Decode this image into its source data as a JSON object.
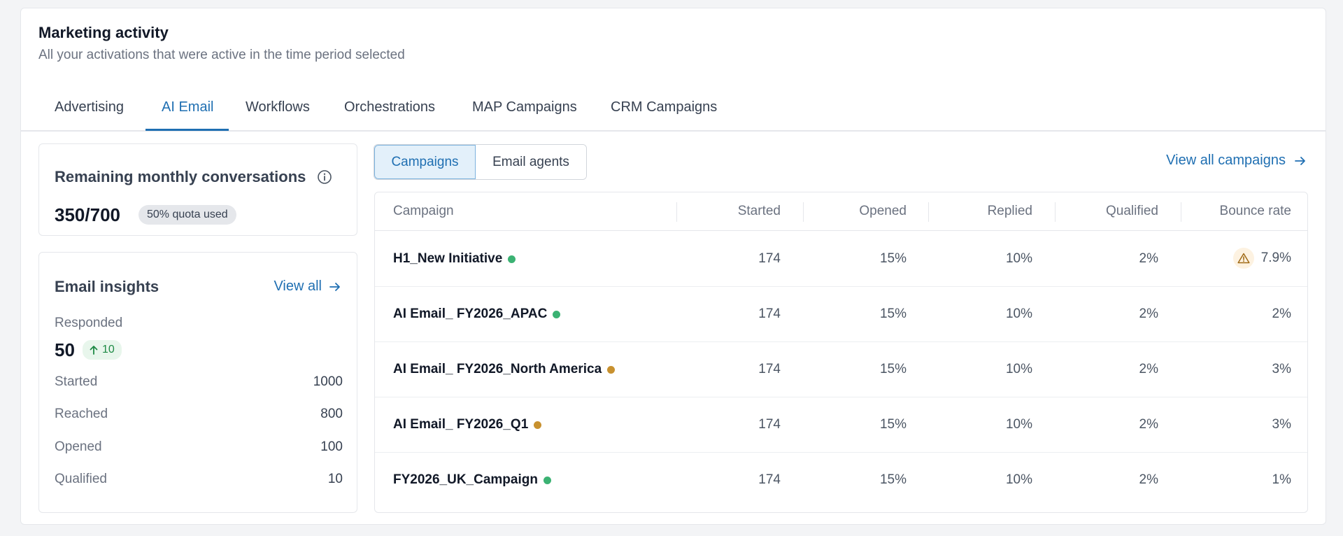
{
  "header": {
    "title": "Marketing activity",
    "subtitle": "All your activations that were active in the time period selected"
  },
  "tabs": [
    {
      "label": "Advertising"
    },
    {
      "label": "AI Email"
    },
    {
      "label": "Workflows"
    },
    {
      "label": "Orchestrations"
    },
    {
      "label": "MAP Campaigns"
    },
    {
      "label": "CRM Campaigns"
    }
  ],
  "active_tab": "AI Email",
  "quota": {
    "title": "Remaining monthly conversations",
    "value": "350/700",
    "badge": "50% quota used"
  },
  "insights": {
    "title": "Email insights",
    "view_all": "View all",
    "responded_label": "Responded",
    "responded_value": "50",
    "responded_delta": "10",
    "metrics": [
      {
        "label": "Started",
        "value": "1000"
      },
      {
        "label": "Reached",
        "value": "800"
      },
      {
        "label": "Opened",
        "value": "100"
      },
      {
        "label": "Qualified",
        "value": "10"
      }
    ]
  },
  "segmented": {
    "campaigns": "Campaigns",
    "email_agents": "Email agents"
  },
  "view_all_campaigns": "View all campaigns",
  "table": {
    "headers": [
      "Campaign",
      "Started",
      "Opened",
      "Replied",
      "Qualified",
      "Bounce rate"
    ],
    "rows": [
      {
        "name": "H1_New Initiative",
        "status": "green",
        "started": "174",
        "opened": "15%",
        "replied": "10%",
        "qualified": "2%",
        "bounce": "7.9%",
        "warning": true
      },
      {
        "name": "AI Email_ FY2026_APAC",
        "status": "green",
        "started": "174",
        "opened": "15%",
        "replied": "10%",
        "qualified": "2%",
        "bounce": "2%",
        "warning": false
      },
      {
        "name": "AI Email_ FY2026_North America",
        "status": "orange",
        "started": "174",
        "opened": "15%",
        "replied": "10%",
        "qualified": "2%",
        "bounce": "3%",
        "warning": false
      },
      {
        "name": "AI Email_ FY2026_Q1",
        "status": "orange",
        "started": "174",
        "opened": "15%",
        "replied": "10%",
        "qualified": "2%",
        "bounce": "3%",
        "warning": false
      },
      {
        "name": "FY2026_UK_Campaign",
        "status": "green",
        "started": "174",
        "opened": "15%",
        "replied": "10%",
        "qualified": "2%",
        "bounce": "1%",
        "warning": false
      }
    ]
  },
  "colors": {
    "accent": "#1f6fb2",
    "status_green": "#3bb273",
    "status_orange": "#c8912f",
    "delta_green": "#1e8a45",
    "warning": "#c8912f"
  }
}
